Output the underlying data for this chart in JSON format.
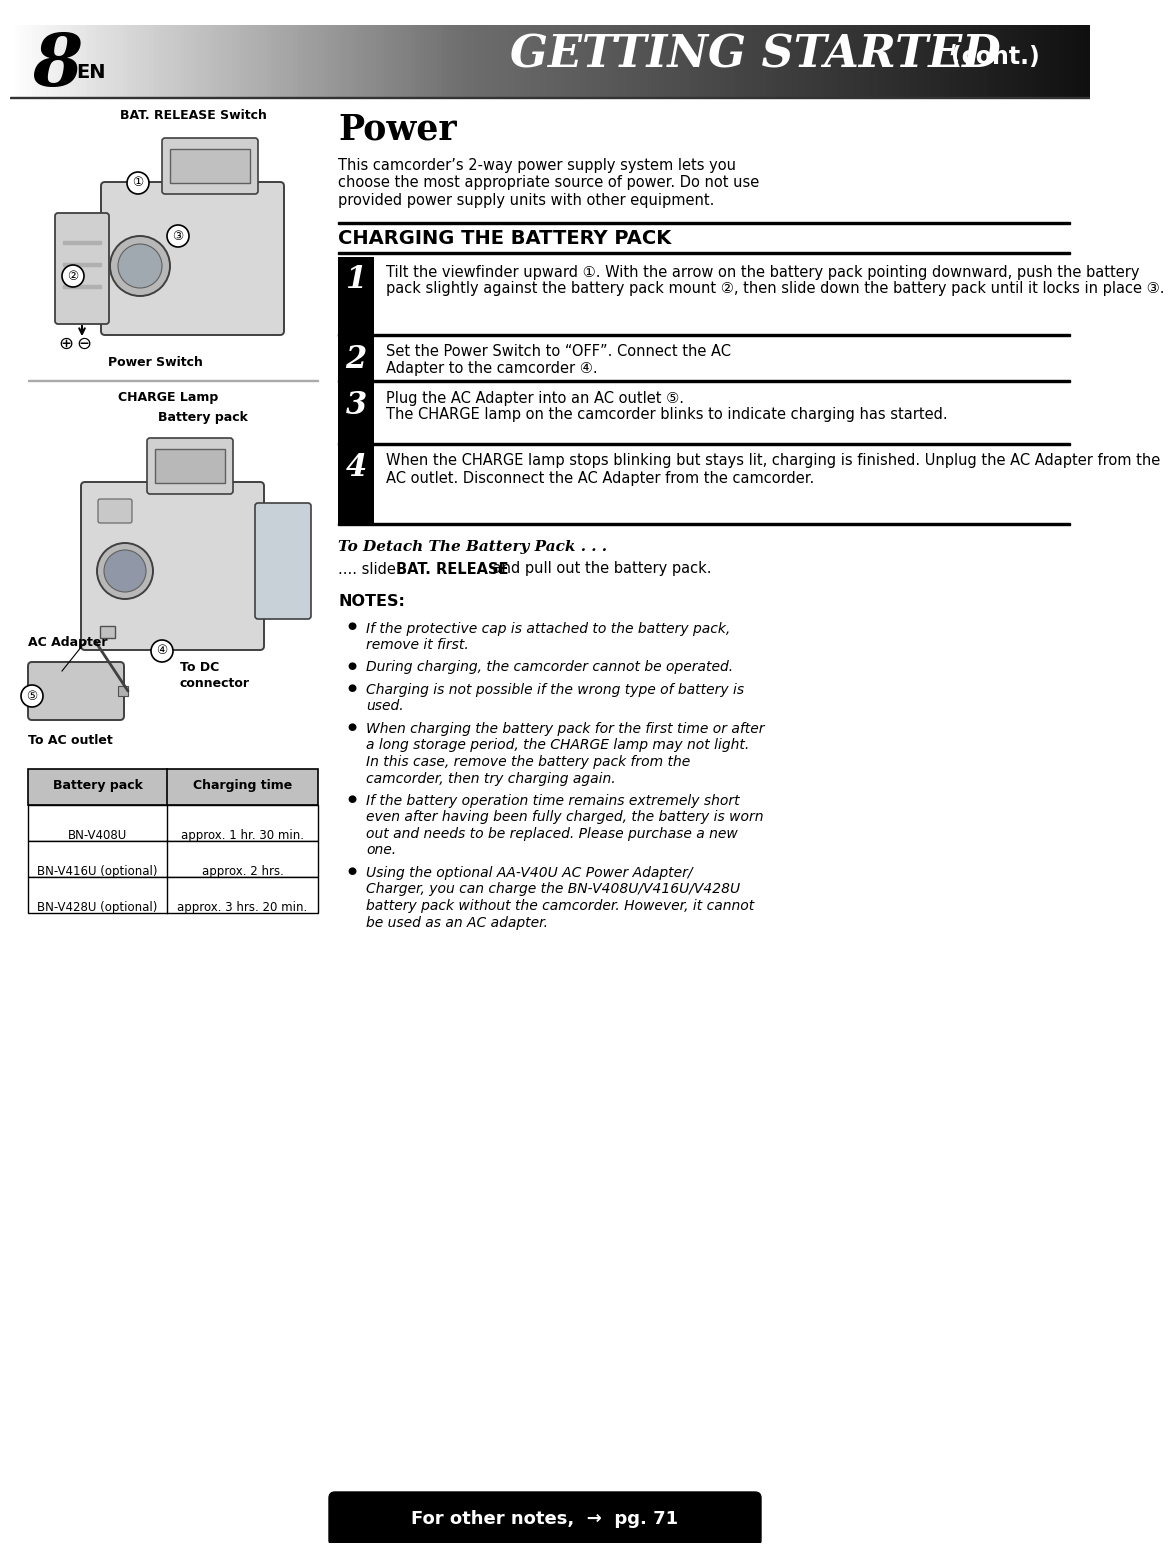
{
  "page_number": "8",
  "page_label": "EN",
  "header_title": "GETTING STARTED",
  "header_cont": "(cont.)",
  "section_title": "Power",
  "intro_text_lines": [
    "This camcorder’s 2-way power supply system lets you",
    "choose the most appropriate source of power. Do not use",
    "provided power supply units with other equipment."
  ],
  "charging_heading": "CHARGING THE BATTERY PACK",
  "steps": [
    {
      "num": "1",
      "text": "Tilt the viewfinder upward ①. With the arrow on the battery pack pointing downward, push the battery pack slightly against the battery pack mount ②, then slide down the battery pack until it locks in place ③."
    },
    {
      "num": "2",
      "text": "Set the Power Switch to “OFF”. Connect the AC Adapter to the camcorder ④."
    },
    {
      "num": "3",
      "text": "Plug the AC Adapter into an AC outlet ⑤.\nThe CHARGE lamp on the camcorder blinks to indicate charging has started."
    },
    {
      "num": "4",
      "text": "When the CHARGE lamp stops blinking but stays lit, charging is finished. Unplug the AC Adapter from the AC outlet. Disconnect the AC Adapter from the camcorder."
    }
  ],
  "detach_heading": "To Detach The Battery Pack . . .",
  "detach_pre": ".... slide ",
  "detach_bold": "BAT. RELEASE",
  "detach_post": " and pull out the battery pack.",
  "notes_heading": "NOTES:",
  "notes": [
    "If the protective cap is attached to the battery pack,\nremove it first.",
    "During charging, the camcorder cannot be operated.",
    "Charging is not possible if the wrong type of battery is\nused.",
    "When charging the battery pack for the first time or after\na long storage period, the CHARGE lamp may not light.\nIn this case, remove the battery pack from the\ncamcorder, then try charging again.",
    "If the battery operation time remains extremely short\neven after having been fully charged, the battery is worn\nout and needs to be replaced. Please purchase a new\none.",
    "Using the optional AA-V40U AC Power Adapter/\nCharger, you can charge the BN-V408U/V416U/V428U\nbattery pack without the camcorder. However, it cannot\nbe used as an AC adapter."
  ],
  "table_headers": [
    "Battery pack",
    "Charging time"
  ],
  "table_rows": [
    [
      "BN-V408U",
      "approx. 1 hr. 30 min."
    ],
    [
      "BN-V416U (optional)",
      "approx. 2 hrs."
    ],
    [
      "BN-V428U (optional)",
      "approx. 3 hrs. 20 min."
    ]
  ],
  "footer_text": "For other notes,  →  pg. 71",
  "bg_color": "#ffffff"
}
